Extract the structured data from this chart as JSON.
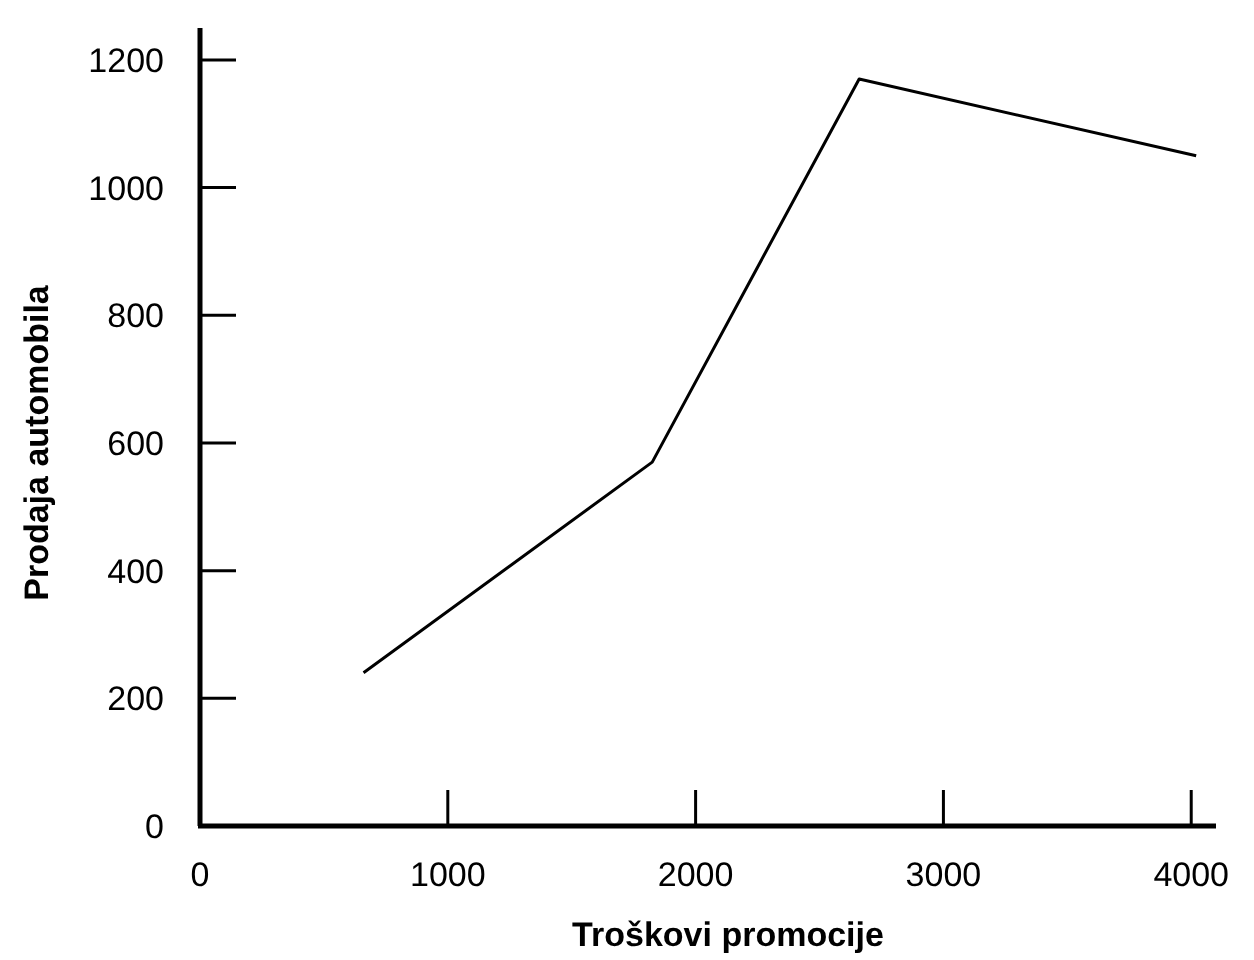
{
  "chart_data": {
    "type": "line",
    "xlabel": "Troškovi promocije",
    "ylabel": "Prodaja automobila",
    "x": [
      660,
      1825,
      2660,
      4020
    ],
    "values": [
      240,
      570,
      1170,
      1050
    ],
    "color": "#000000",
    "xlim": [
      0,
      4100
    ],
    "ylim": [
      0,
      1250
    ],
    "xticks": [
      0,
      1000,
      2000,
      3000,
      4000
    ],
    "yticks": [
      0,
      200,
      400,
      600,
      800,
      1000,
      1200
    ],
    "grid": false,
    "marker": "none",
    "line_style": "solid"
  }
}
